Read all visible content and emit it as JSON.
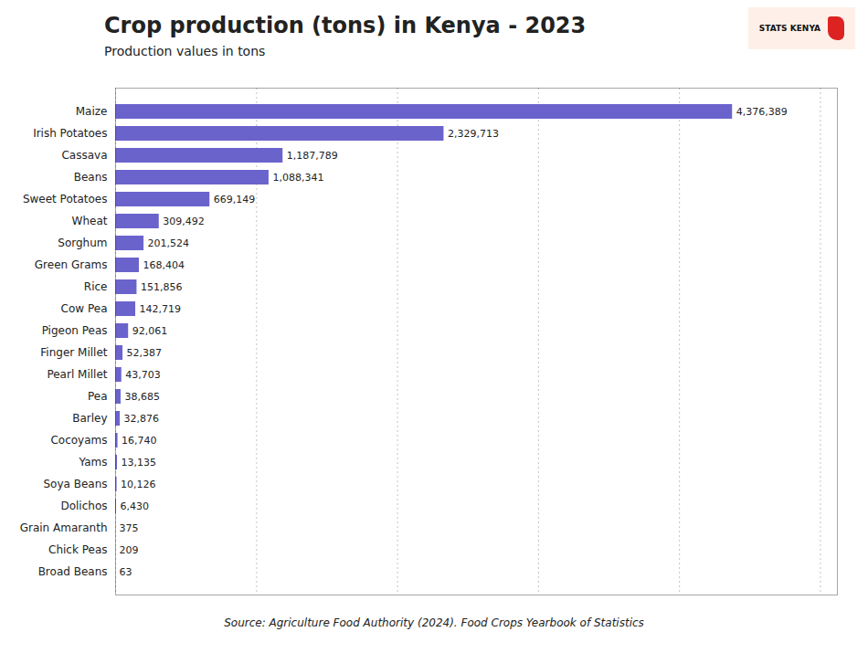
{
  "chart_data": {
    "type": "bar",
    "orientation": "horizontal",
    "title": "Crop production (tons) in Kenya - 2023",
    "subtitle": "Production values in tons",
    "source": "Source: Agriculture Food Authority (2024). Food Crops Yearbook of Statistics",
    "annotations": [
      "STATS KENYA"
    ],
    "categories": [
      "Maize",
      "Irish Potatoes",
      "Cassava",
      "Beans",
      "Sweet Potatoes",
      "Wheat",
      "Sorghum",
      "Green Grams",
      "Rice",
      "Cow Pea",
      "Pigeon Peas",
      "Finger Millet",
      "Pearl Millet",
      "Pea",
      "Barley",
      "Cocoyams",
      "Yams",
      "Soya Beans",
      "Dolichos",
      "Grain Amaranth",
      "Chick Peas",
      "Broad Beans"
    ],
    "values": [
      4376389,
      2329713,
      1187789,
      1088341,
      669149,
      309492,
      201524,
      168404,
      151856,
      142719,
      92061,
      52387,
      43703,
      38685,
      32876,
      16740,
      13135,
      10126,
      6430,
      375,
      209,
      63
    ],
    "value_labels": [
      "4,376,389",
      "2,329,713",
      "1,187,789",
      "1,088,341",
      "669,149",
      "309,492",
      "201,524",
      "168,404",
      "151,856",
      "142,719",
      "92,061",
      "52,387",
      "43,703",
      "38,685",
      "32,876",
      "16,740",
      "13,135",
      "10,126",
      "6,430",
      "375",
      "209",
      "63"
    ],
    "data_labels": true,
    "color": "#6b63cc",
    "xlim": [
      0,
      5120375.13
    ],
    "xticks": [
      0,
      1000000,
      2000000,
      3000000,
      4000000,
      5000000
    ],
    "grid": true,
    "tick_labels": "y"
  }
}
